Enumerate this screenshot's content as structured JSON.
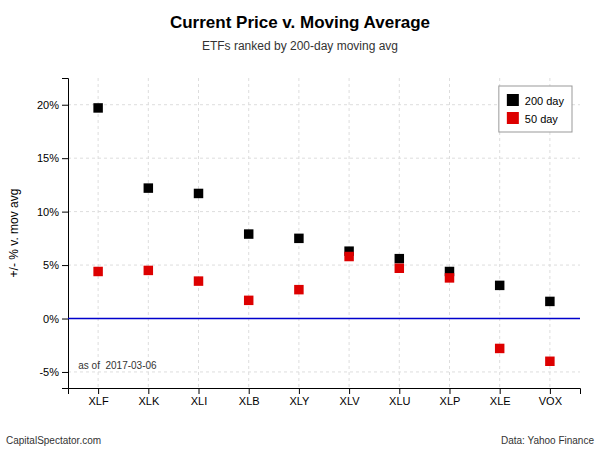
{
  "chart_data": {
    "type": "scatter",
    "title": "Current Price v. Moving Average",
    "subtitle": "ETFs ranked by 200-day moving avg",
    "ylabel": "+/- % v. mov avg",
    "categories": [
      "XLF",
      "XLK",
      "XLI",
      "XLB",
      "XLY",
      "XLV",
      "XLU",
      "XLP",
      "XLE",
      "VOX"
    ],
    "series": [
      {
        "name": "200 day",
        "color": "#000000",
        "marker": "square",
        "values": [
          19.7,
          12.2,
          11.7,
          7.9,
          7.5,
          6.3,
          5.6,
          4.4,
          3.1,
          1.6
        ]
      },
      {
        "name": "50 day",
        "color": "#dd0000",
        "marker": "square",
        "values": [
          4.4,
          4.5,
          3.5,
          1.7,
          2.7,
          5.8,
          4.7,
          3.8,
          -2.8,
          -4.0
        ]
      }
    ],
    "ylim": [
      -6.5,
      22.5
    ],
    "yticks": [
      {
        "value": -5,
        "label": "-5%"
      },
      {
        "value": 0,
        "label": "0%"
      },
      {
        "value": 5,
        "label": "5%"
      },
      {
        "value": 10,
        "label": "10%"
      },
      {
        "value": 15,
        "label": "15%"
      },
      {
        "value": 20,
        "label": "20%"
      }
    ],
    "grid": true,
    "legend": "upper right",
    "annotations": [
      "as of  2017-03-06",
      "CapitalSpectator.com",
      "Data: Yahoo Finance"
    ]
  }
}
